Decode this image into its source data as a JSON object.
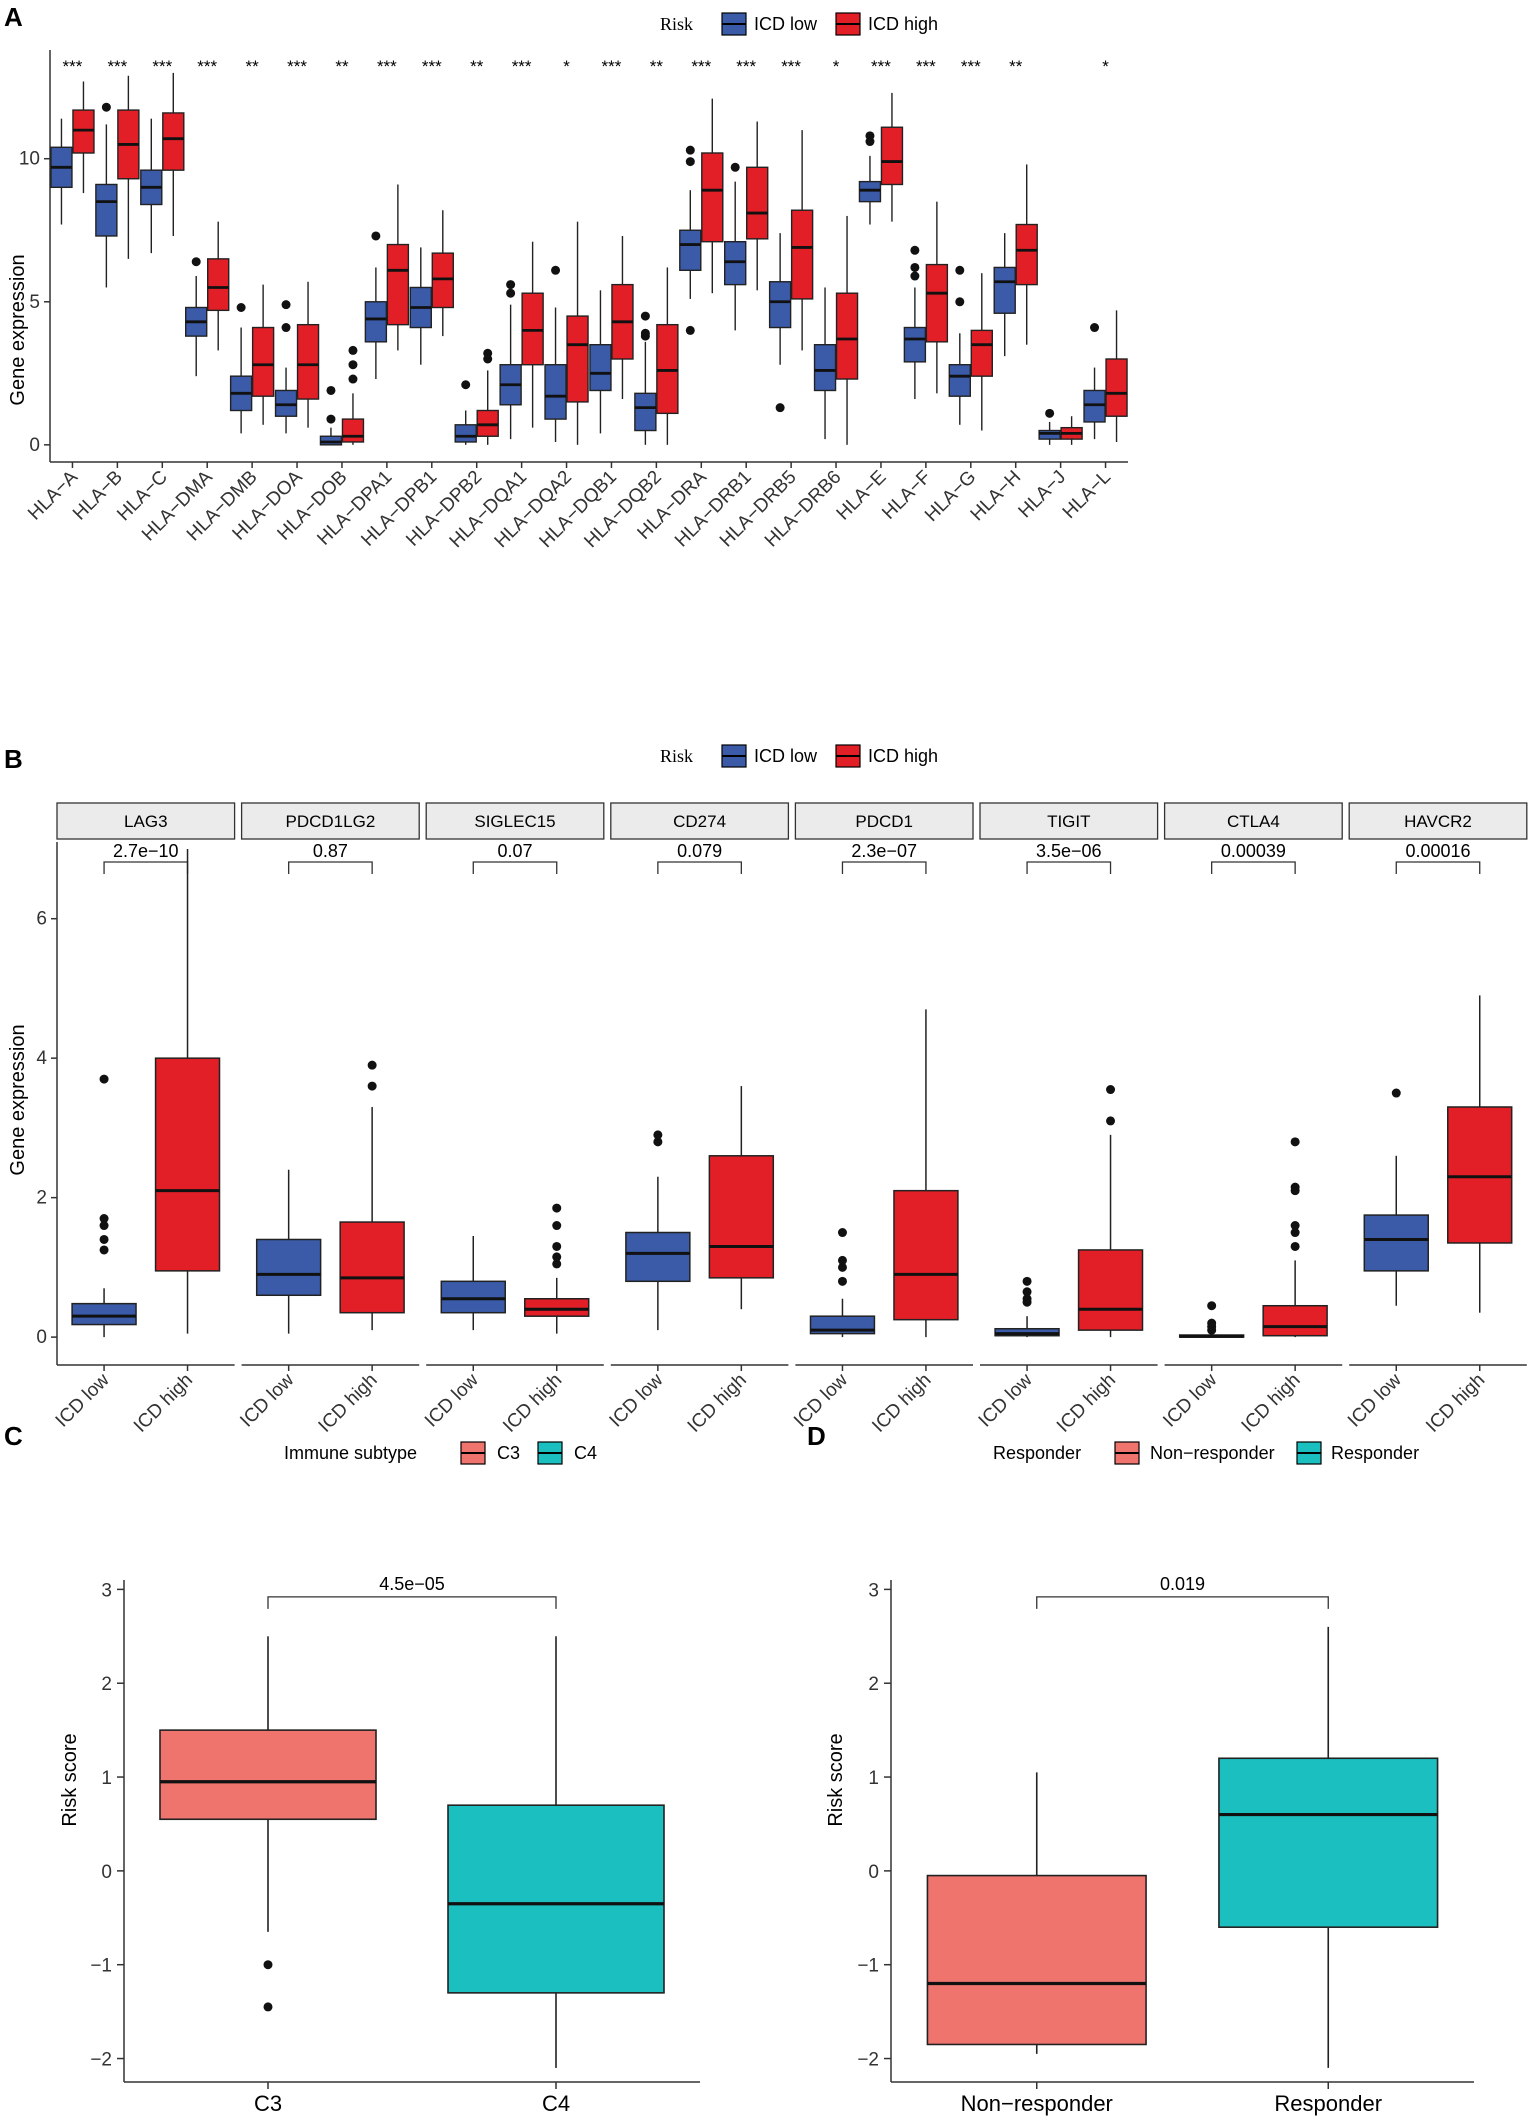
{
  "panel_labels": {
    "a": "A",
    "b": "B",
    "c": "C",
    "d": "D"
  },
  "colors": {
    "low": "#3B5BA9",
    "high": "#E21F26",
    "c3": "#F0746E",
    "c4": "#1CBFC0",
    "axis": "#333333"
  },
  "chart_data": [
    {
      "panel": "A",
      "type": "box",
      "title": "",
      "xlabel": "",
      "ylabel": "Gene expression",
      "ylim": [
        -0.6,
        13.8
      ],
      "yticks": [
        0,
        5,
        10
      ],
      "legend": {
        "title": "Risk",
        "entries": [
          "ICD low",
          "ICD high"
        ],
        "position": "top"
      },
      "categories": [
        "HLA−A",
        "HLA−B",
        "HLA−C",
        "HLA−DMA",
        "HLA−DMB",
        "HLA−DOA",
        "HLA−DOB",
        "HLA−DPA1",
        "HLA−DPB1",
        "HLA−DPB2",
        "HLA−DQA1",
        "HLA−DQA2",
        "HLA−DQB1",
        "HLA−DQB2",
        "HLA−DRA",
        "HLA−DRB1",
        "HLA−DRB5",
        "HLA−DRB6",
        "HLA−E",
        "HLA−F",
        "HLA−G",
        "HLA−H",
        "HLA−J",
        "HLA−L"
      ],
      "significance": [
        "***",
        "***",
        "***",
        "***",
        "**",
        "***",
        "**",
        "***",
        "***",
        "**",
        "***",
        "*",
        "***",
        "**",
        "***",
        "***",
        "***",
        "*",
        "***",
        "***",
        "***",
        "**",
        "",
        "*"
      ],
      "series": [
        {
          "name": "ICD low",
          "boxes": [
            {
              "lo": 7.7,
              "q1": 9.0,
              "med": 9.7,
              "q3": 10.4,
              "hi": 11.4,
              "out": []
            },
            {
              "lo": 5.5,
              "q1": 7.3,
              "med": 8.5,
              "q3": 9.1,
              "hi": 11.2,
              "out": [
                11.8
              ]
            },
            {
              "lo": 6.7,
              "q1": 8.4,
              "med": 9.0,
              "q3": 9.6,
              "hi": 11.4,
              "out": []
            },
            {
              "lo": 2.4,
              "q1": 3.8,
              "med": 4.3,
              "q3": 4.8,
              "hi": 5.9,
              "out": [
                6.4
              ]
            },
            {
              "lo": 0.4,
              "q1": 1.2,
              "med": 1.8,
              "q3": 2.4,
              "hi": 4.1,
              "out": [
                4.8
              ]
            },
            {
              "lo": 0.4,
              "q1": 1.0,
              "med": 1.4,
              "q3": 1.9,
              "hi": 2.7,
              "out": [
                4.1,
                4.9
              ]
            },
            {
              "lo": 0.0,
              "q1": 0.0,
              "med": 0.1,
              "q3": 0.3,
              "hi": 0.6,
              "out": [
                0.9,
                1.9
              ]
            },
            {
              "lo": 2.3,
              "q1": 3.6,
              "med": 4.4,
              "q3": 5.0,
              "hi": 6.2,
              "out": [
                7.3
              ]
            },
            {
              "lo": 2.8,
              "q1": 4.1,
              "med": 4.8,
              "q3": 5.5,
              "hi": 6.9,
              "out": []
            },
            {
              "lo": 0.0,
              "q1": 0.1,
              "med": 0.3,
              "q3": 0.7,
              "hi": 1.2,
              "out": [
                2.1
              ]
            },
            {
              "lo": 0.2,
              "q1": 1.4,
              "med": 2.1,
              "q3": 2.8,
              "hi": 4.9,
              "out": [
                5.3,
                5.6
              ]
            },
            {
              "lo": 0.1,
              "q1": 0.9,
              "med": 1.7,
              "q3": 2.8,
              "hi": 4.8,
              "out": [
                6.1
              ]
            },
            {
              "lo": 0.4,
              "q1": 1.9,
              "med": 2.5,
              "q3": 3.5,
              "hi": 5.4,
              "out": []
            },
            {
              "lo": 0.0,
              "q1": 0.5,
              "med": 1.3,
              "q3": 1.8,
              "hi": 3.6,
              "out": [
                3.8,
                3.9,
                4.5
              ]
            },
            {
              "lo": 5.1,
              "q1": 6.1,
              "med": 7.0,
              "q3": 7.5,
              "hi": 8.9,
              "out": [
                4.0,
                9.9,
                10.3
              ]
            },
            {
              "lo": 4.0,
              "q1": 5.6,
              "med": 6.4,
              "q3": 7.1,
              "hi": 9.2,
              "out": [
                9.7
              ]
            },
            {
              "lo": 2.8,
              "q1": 4.1,
              "med": 5.0,
              "q3": 5.7,
              "hi": 7.4,
              "out": [
                1.3
              ]
            },
            {
              "lo": 0.2,
              "q1": 1.9,
              "med": 2.6,
              "q3": 3.5,
              "hi": 5.5,
              "out": []
            },
            {
              "lo": 7.7,
              "q1": 8.5,
              "med": 8.9,
              "q3": 9.2,
              "hi": 10.1,
              "out": [
                10.6,
                10.8
              ]
            },
            {
              "lo": 1.6,
              "q1": 2.9,
              "med": 3.7,
              "q3": 4.1,
              "hi": 5.5,
              "out": [
                5.9,
                6.2,
                6.8
              ]
            },
            {
              "lo": 0.7,
              "q1": 1.7,
              "med": 2.4,
              "q3": 2.8,
              "hi": 3.9,
              "out": [
                5.0,
                6.1
              ]
            },
            {
              "lo": 3.1,
              "q1": 4.6,
              "med": 5.7,
              "q3": 6.2,
              "hi": 7.4,
              "out": []
            },
            {
              "lo": 0.0,
              "q1": 0.2,
              "med": 0.4,
              "q3": 0.5,
              "hi": 0.8,
              "out": [
                1.1
              ]
            },
            {
              "lo": 0.2,
              "q1": 0.8,
              "med": 1.4,
              "q3": 1.9,
              "hi": 2.7,
              "out": [
                4.1
              ]
            }
          ]
        },
        {
          "name": "ICD high",
          "boxes": [
            {
              "lo": 8.8,
              "q1": 10.2,
              "med": 11.0,
              "q3": 11.7,
              "hi": 12.7,
              "out": []
            },
            {
              "lo": 6.5,
              "q1": 9.3,
              "med": 10.5,
              "q3": 11.7,
              "hi": 12.9,
              "out": []
            },
            {
              "lo": 7.3,
              "q1": 9.6,
              "med": 10.7,
              "q3": 11.6,
              "hi": 13.0,
              "out": []
            },
            {
              "lo": 3.3,
              "q1": 4.7,
              "med": 5.5,
              "q3": 6.5,
              "hi": 7.8,
              "out": []
            },
            {
              "lo": 0.7,
              "q1": 1.7,
              "med": 2.8,
              "q3": 4.1,
              "hi": 5.6,
              "out": []
            },
            {
              "lo": 0.6,
              "q1": 1.6,
              "med": 2.8,
              "q3": 4.2,
              "hi": 5.7,
              "out": []
            },
            {
              "lo": 0.0,
              "q1": 0.1,
              "med": 0.3,
              "q3": 0.9,
              "hi": 1.8,
              "out": [
                2.3,
                2.8,
                3.3
              ]
            },
            {
              "lo": 3.3,
              "q1": 4.2,
              "med": 6.1,
              "q3": 7.0,
              "hi": 9.1,
              "out": []
            },
            {
              "lo": 3.8,
              "q1": 4.8,
              "med": 5.8,
              "q3": 6.7,
              "hi": 8.2,
              "out": []
            },
            {
              "lo": 0.0,
              "q1": 0.3,
              "med": 0.7,
              "q3": 1.2,
              "hi": 2.6,
              "out": [
                3.0,
                3.2
              ]
            },
            {
              "lo": 0.6,
              "q1": 2.8,
              "med": 4.0,
              "q3": 5.3,
              "hi": 7.1,
              "out": []
            },
            {
              "lo": 0.0,
              "q1": 1.5,
              "med": 3.5,
              "q3": 4.5,
              "hi": 7.8,
              "out": []
            },
            {
              "lo": 1.6,
              "q1": 3.0,
              "med": 4.3,
              "q3": 5.6,
              "hi": 7.3,
              "out": []
            },
            {
              "lo": 0.0,
              "q1": 1.1,
              "med": 2.6,
              "q3": 4.2,
              "hi": 6.2,
              "out": []
            },
            {
              "lo": 5.3,
              "q1": 7.1,
              "med": 8.9,
              "q3": 10.2,
              "hi": 12.1,
              "out": []
            },
            {
              "lo": 5.4,
              "q1": 7.2,
              "med": 8.1,
              "q3": 9.7,
              "hi": 11.3,
              "out": []
            },
            {
              "lo": 3.3,
              "q1": 5.1,
              "med": 6.9,
              "q3": 8.2,
              "hi": 11.0,
              "out": []
            },
            {
              "lo": 0.0,
              "q1": 2.3,
              "med": 3.7,
              "q3": 5.3,
              "hi": 8.0,
              "out": []
            },
            {
              "lo": 7.8,
              "q1": 9.1,
              "med": 9.9,
              "q3": 11.1,
              "hi": 12.3,
              "out": []
            },
            {
              "lo": 1.8,
              "q1": 3.6,
              "med": 5.3,
              "q3": 6.3,
              "hi": 8.5,
              "out": []
            },
            {
              "lo": 0.5,
              "q1": 2.4,
              "med": 3.5,
              "q3": 4.0,
              "hi": 6.0,
              "out": []
            },
            {
              "lo": 3.5,
              "q1": 5.6,
              "med": 6.8,
              "q3": 7.7,
              "hi": 9.8,
              "out": []
            },
            {
              "lo": 0.0,
              "q1": 0.2,
              "med": 0.4,
              "q3": 0.6,
              "hi": 1.0,
              "out": []
            },
            {
              "lo": 0.1,
              "q1": 1.0,
              "med": 1.8,
              "q3": 3.0,
              "hi": 4.7,
              "out": []
            }
          ]
        }
      ]
    },
    {
      "panel": "B",
      "type": "box",
      "xlabel": "",
      "ylabel": "Gene expression",
      "ylim": [
        -0.4,
        7.1
      ],
      "yticks": [
        0,
        2,
        4,
        6
      ],
      "legend": {
        "title": "Risk",
        "entries": [
          "ICD low",
          "ICD high"
        ],
        "position": "top"
      },
      "x_categories": [
        "ICD low",
        "ICD high"
      ],
      "facets": [
        {
          "label": "LAG3",
          "p": "2.7e−10",
          "low": {
            "lo": 0.0,
            "q1": 0.18,
            "med": 0.3,
            "q3": 0.48,
            "hi": 0.7,
            "out": [
              1.25,
              1.4,
              1.6,
              1.7,
              3.7
            ]
          },
          "high": {
            "lo": 0.05,
            "q1": 0.95,
            "med": 2.1,
            "q3": 4.0,
            "hi": 7.0,
            "out": []
          }
        },
        {
          "label": "PDCD1LG2",
          "p": "0.87",
          "low": {
            "lo": 0.05,
            "q1": 0.6,
            "med": 0.9,
            "q3": 1.4,
            "hi": 2.4,
            "out": []
          },
          "high": {
            "lo": 0.1,
            "q1": 0.35,
            "med": 0.85,
            "q3": 1.65,
            "hi": 3.3,
            "out": [
              3.6,
              3.9
            ]
          }
        },
        {
          "label": "SIGLEC15",
          "p": "0.07",
          "low": {
            "lo": 0.1,
            "q1": 0.35,
            "med": 0.55,
            "q3": 0.8,
            "hi": 1.45,
            "out": []
          },
          "high": {
            "lo": 0.05,
            "q1": 0.3,
            "med": 0.4,
            "q3": 0.55,
            "hi": 0.85,
            "out": [
              1.05,
              1.15,
              1.3,
              1.6,
              1.85
            ]
          }
        },
        {
          "label": "CD274",
          "p": "0.079",
          "low": {
            "lo": 0.1,
            "q1": 0.8,
            "med": 1.2,
            "q3": 1.5,
            "hi": 2.3,
            "out": [
              2.8,
              2.9
            ]
          },
          "high": {
            "lo": 0.4,
            "q1": 0.85,
            "med": 1.3,
            "q3": 2.6,
            "hi": 3.6,
            "out": []
          }
        },
        {
          "label": "PDCD1",
          "p": "2.3e−07",
          "low": {
            "lo": 0.0,
            "q1": 0.05,
            "med": 0.1,
            "q3": 0.3,
            "hi": 0.55,
            "out": [
              0.8,
              1.0,
              1.1,
              1.5
            ]
          },
          "high": {
            "lo": 0.0,
            "q1": 0.25,
            "med": 0.9,
            "q3": 2.1,
            "hi": 4.7,
            "out": []
          }
        },
        {
          "label": "TIGIT",
          "p": "3.5e−06",
          "low": {
            "lo": 0.0,
            "q1": 0.02,
            "med": 0.05,
            "q3": 0.12,
            "hi": 0.3,
            "out": [
              0.5,
              0.55,
              0.65,
              0.8
            ]
          },
          "high": {
            "lo": 0.0,
            "q1": 0.1,
            "med": 0.4,
            "q3": 1.25,
            "hi": 2.9,
            "out": [
              3.1,
              3.55
            ]
          }
        },
        {
          "label": "CTLA4",
          "p": "0.00039",
          "low": {
            "lo": 0.0,
            "q1": 0.0,
            "med": 0.01,
            "q3": 0.03,
            "hi": 0.07,
            "out": [
              0.1,
              0.15,
              0.2,
              0.45
            ]
          },
          "high": {
            "lo": 0.0,
            "q1": 0.02,
            "med": 0.15,
            "q3": 0.45,
            "hi": 1.1,
            "out": [
              1.3,
              1.5,
              1.6,
              2.1,
              2.15,
              2.8
            ]
          }
        },
        {
          "label": "HAVCR2",
          "p": "0.00016",
          "low": {
            "lo": 0.45,
            "q1": 0.95,
            "med": 1.4,
            "q3": 1.75,
            "hi": 2.6,
            "out": [
              3.5
            ]
          },
          "high": {
            "lo": 0.35,
            "q1": 1.35,
            "med": 2.3,
            "q3": 3.3,
            "hi": 4.9,
            "out": []
          }
        }
      ]
    },
    {
      "panel": "C",
      "type": "box",
      "ylabel": "Risk score",
      "xlabel": "",
      "ylim": [
        -2.25,
        3.1
      ],
      "yticks": [
        -2,
        -1,
        0,
        1,
        2,
        3
      ],
      "legend": {
        "title": "Immune subtype",
        "entries": [
          "C3",
          "C4"
        ],
        "position": "top"
      },
      "categories": [
        "C3",
        "C4"
      ],
      "p_value": "4.5e−05",
      "boxes": [
        {
          "lo": -0.65,
          "q1": 0.55,
          "med": 0.95,
          "q3": 1.5,
          "hi": 2.5,
          "out": [
            -1.0,
            -1.45
          ]
        },
        {
          "lo": -2.1,
          "q1": -1.3,
          "med": -0.35,
          "q3": 0.7,
          "hi": 2.5,
          "out": []
        }
      ]
    },
    {
      "panel": "D",
      "type": "box",
      "ylabel": "Risk score",
      "xlabel": "",
      "ylim": [
        -2.25,
        3.1
      ],
      "yticks": [
        -2,
        -1,
        0,
        1,
        2,
        3
      ],
      "legend": {
        "title": "Responder",
        "entries": [
          "Non−responder",
          "Responder"
        ],
        "position": "top"
      },
      "categories": [
        "Non−responder",
        "Responder"
      ],
      "p_value": "0.019",
      "boxes": [
        {
          "lo": -1.95,
          "q1": -1.85,
          "med": -1.2,
          "q3": -0.05,
          "hi": 1.05,
          "out": []
        },
        {
          "lo": -2.1,
          "q1": -0.6,
          "med": 0.6,
          "q3": 1.2,
          "hi": 2.6,
          "out": []
        }
      ]
    }
  ]
}
